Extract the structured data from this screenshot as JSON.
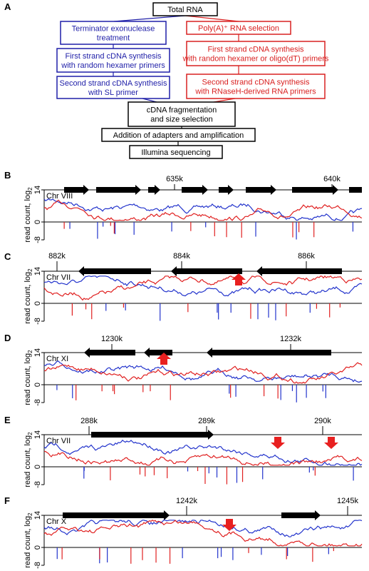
{
  "panel_a": {
    "label": "A",
    "nodes": [
      {
        "lines": [
          "Total RNA"
        ]
      },
      {
        "lines": [
          "Terminator exonuclease",
          "treatment"
        ]
      },
      {
        "lines": [
          "Poly(A)⁺ RNA selection"
        ]
      },
      {
        "lines": [
          "First strand cDNA synthesis",
          "with random hexamer primers"
        ]
      },
      {
        "lines": [
          "First strand cDNA synthesis",
          "with random hexamer or oligo(dT) primers"
        ]
      },
      {
        "lines": [
          "Second strand cDNA synthesis",
          "with SL primer"
        ]
      },
      {
        "lines": [
          "Second strand cDNA synthesis",
          "with RNaseH-derived RNA primers"
        ]
      },
      {
        "lines": [
          "cDNA fragmentation",
          "and size selection"
        ]
      },
      {
        "lines": [
          "Addition of adapters and amplification"
        ]
      },
      {
        "lines": [
          "Illumina sequencing"
        ]
      }
    ]
  },
  "tracks": [
    {
      "label": "B",
      "chromosome": "Chr VIII",
      "positions": [
        "635k",
        "640k"
      ]
    },
    {
      "label": "C",
      "chromosome": "Chr VII",
      "positions": [
        "882k",
        "884k",
        "886k"
      ]
    },
    {
      "label": "D",
      "chromosome": "Chr XI",
      "positions": [
        "1230k",
        "1232k"
      ]
    },
    {
      "label": "E",
      "chromosome": "Chr VII",
      "positions": [
        "288k",
        "289k",
        "290k"
      ]
    },
    {
      "label": "F",
      "chromosome": "Chr X",
      "positions": [
        "1242k",
        "1245k"
      ]
    }
  ],
  "y_axis": {
    "label": "read count, log",
    "label_sub": "2",
    "ticks": [
      "14",
      "0",
      "-8"
    ]
  }
}
